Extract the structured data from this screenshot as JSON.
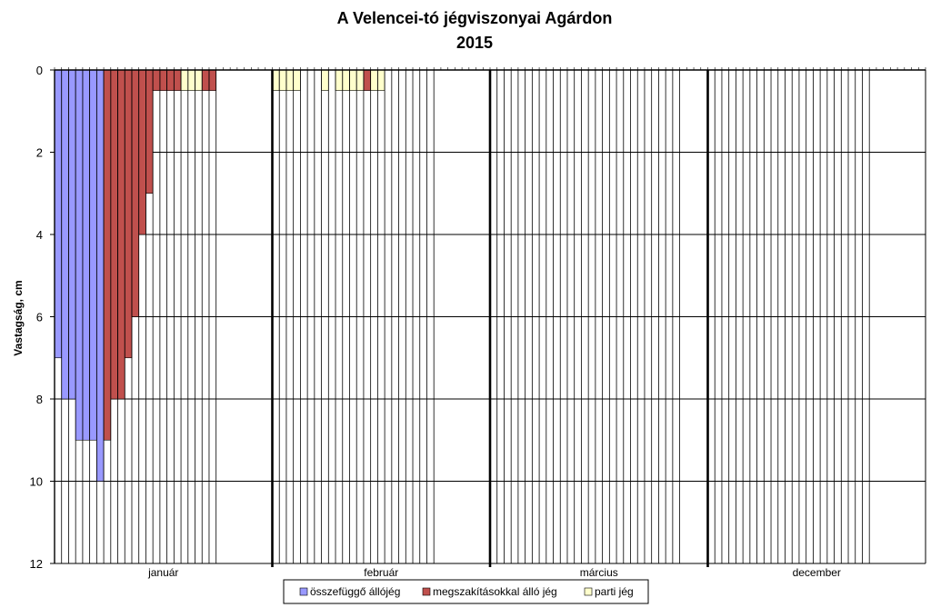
{
  "chart_data": {
    "type": "bar",
    "title": "A Velencei-tó jégviszonyai Agárdon",
    "subtitle": "2015",
    "ylabel": "Vastagság, cm",
    "xlabel": "",
    "ylim": [
      0,
      12
    ],
    "y_inverted": true,
    "y_ticks": [
      0,
      2,
      4,
      6,
      8,
      10,
      12
    ],
    "grid": true,
    "legend_position": "bottom",
    "slots_per_month": 31,
    "months": [
      {
        "name": "január",
        "days": 24
      },
      {
        "name": "február",
        "days": 24
      },
      {
        "name": "március",
        "days": 28
      },
      {
        "name": "december",
        "days": 24
      }
    ],
    "series": [
      {
        "name": "összefüggő állójég",
        "color": "#9999ff"
      },
      {
        "name": "megszakításokkal álló jég",
        "color": "#c0504d"
      },
      {
        "name": "parti jég",
        "color": "#ffffcc"
      }
    ],
    "bars": [
      {
        "month": "január",
        "day": 1,
        "series": "összefüggő állójég",
        "value": 7
      },
      {
        "month": "január",
        "day": 2,
        "series": "összefüggő állójég",
        "value": 8
      },
      {
        "month": "január",
        "day": 3,
        "series": "összefüggő állójég",
        "value": 8
      },
      {
        "month": "január",
        "day": 4,
        "series": "összefüggő állójég",
        "value": 9
      },
      {
        "month": "január",
        "day": 5,
        "series": "összefüggő állójég",
        "value": 9
      },
      {
        "month": "január",
        "day": 6,
        "series": "összefüggő állójég",
        "value": 9
      },
      {
        "month": "január",
        "day": 7,
        "series": "összefüggő állójég",
        "value": 10
      },
      {
        "month": "január",
        "day": 8,
        "series": "megszakításokkal álló jég",
        "value": 9
      },
      {
        "month": "január",
        "day": 9,
        "series": "megszakításokkal álló jég",
        "value": 8
      },
      {
        "month": "január",
        "day": 10,
        "series": "megszakításokkal álló jég",
        "value": 8
      },
      {
        "month": "január",
        "day": 11,
        "series": "megszakításokkal álló jég",
        "value": 7
      },
      {
        "month": "január",
        "day": 12,
        "series": "megszakításokkal álló jég",
        "value": 6
      },
      {
        "month": "január",
        "day": 13,
        "series": "megszakításokkal álló jég",
        "value": 4
      },
      {
        "month": "január",
        "day": 14,
        "series": "megszakításokkal álló jég",
        "value": 3
      },
      {
        "month": "január",
        "day": 15,
        "series": "megszakításokkal álló jég",
        "value": 0.5
      },
      {
        "month": "január",
        "day": 16,
        "series": "megszakításokkal álló jég",
        "value": 0.5
      },
      {
        "month": "január",
        "day": 17,
        "series": "megszakításokkal álló jég",
        "value": 0.5
      },
      {
        "month": "január",
        "day": 18,
        "series": "megszakításokkal álló jég",
        "value": 0.5
      },
      {
        "month": "január",
        "day": 19,
        "series": "parti jég",
        "value": 0.5
      },
      {
        "month": "január",
        "day": 20,
        "series": "parti jég",
        "value": 0.5
      },
      {
        "month": "január",
        "day": 21,
        "series": "parti jég",
        "value": 0.5
      },
      {
        "month": "január",
        "day": 22,
        "series": "megszakításokkal álló jég",
        "value": 0.5
      },
      {
        "month": "január",
        "day": 23,
        "series": "megszakításokkal álló jég",
        "value": 0.5
      },
      {
        "month": "február",
        "day": 1,
        "series": "parti jég",
        "value": 0.5
      },
      {
        "month": "február",
        "day": 2,
        "series": "parti jég",
        "value": 0.5
      },
      {
        "month": "február",
        "day": 3,
        "series": "parti jég",
        "value": 0.5
      },
      {
        "month": "február",
        "day": 4,
        "series": "parti jég",
        "value": 0.5
      },
      {
        "month": "február",
        "day": 8,
        "series": "parti jég",
        "value": 0.5
      },
      {
        "month": "február",
        "day": 10,
        "series": "parti jég",
        "value": 0.5
      },
      {
        "month": "február",
        "day": 11,
        "series": "parti jég",
        "value": 0.5
      },
      {
        "month": "február",
        "day": 12,
        "series": "parti jég",
        "value": 0.5
      },
      {
        "month": "február",
        "day": 13,
        "series": "parti jég",
        "value": 0.5
      },
      {
        "month": "február",
        "day": 14,
        "series": "megszakításokkal álló jég",
        "value": 0.5
      },
      {
        "month": "február",
        "day": 15,
        "series": "parti jég",
        "value": 0.5
      },
      {
        "month": "február",
        "day": 16,
        "series": "parti jég",
        "value": 0.5
      }
    ]
  }
}
